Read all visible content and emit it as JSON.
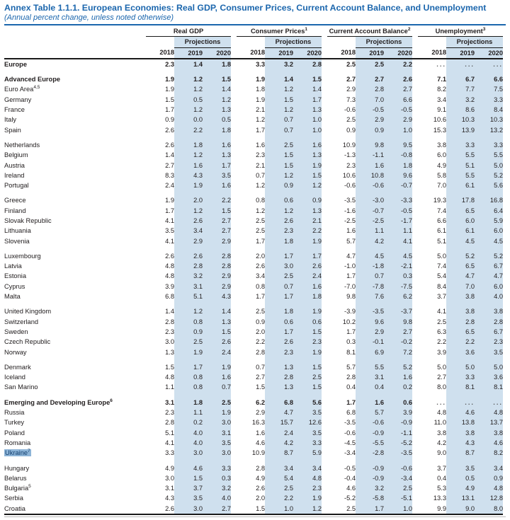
{
  "title": "Annex Table 1.1.1. European Economies: Real GDP, Consumer Prices, Current Account Balance, and Unemployment",
  "subtitle": "(Annual percent change, unless noted otherwise)",
  "colors": {
    "accent_blue": "#1b66ad",
    "projection_shade": "#cfe0ee",
    "highlight_bg": "#8db4d7",
    "highlight_text": "#14406f",
    "rule_black": "#1a1a1a"
  },
  "header": {
    "groups": [
      {
        "label": "Real GDP",
        "sup": ""
      },
      {
        "label": "Consumer Prices",
        "sup": "1"
      },
      {
        "label": "Current Account Balance",
        "sup": "2"
      },
      {
        "label": "Unemployment",
        "sup": "3"
      }
    ],
    "projections_label": "Projections",
    "years": [
      "2018",
      "2019",
      "2020"
    ]
  },
  "rows": [
    {
      "label": "Europe",
      "sup": "",
      "indent": 0,
      "bold": true,
      "highlight": false,
      "gap_before": false,
      "values": [
        "2.3",
        "1.4",
        "1.8",
        "3.3",
        "3.2",
        "2.8",
        "2.5",
        "2.5",
        "2.2",
        "...",
        "...",
        "..."
      ]
    },
    {
      "label": "Advanced Europe",
      "sup": "",
      "indent": 1,
      "bold": true,
      "highlight": false,
      "gap_before": true,
      "values": [
        "1.9",
        "1.2",
        "1.5",
        "1.9",
        "1.4",
        "1.5",
        "2.7",
        "2.7",
        "2.6",
        "7.1",
        "6.7",
        "6.6"
      ]
    },
    {
      "label": "Euro Area",
      "sup": "4,5",
      "indent": 1,
      "bold": false,
      "highlight": false,
      "gap_before": false,
      "values": [
        "1.9",
        "1.2",
        "1.4",
        "1.8",
        "1.2",
        "1.4",
        "2.9",
        "2.8",
        "2.7",
        "8.2",
        "7.7",
        "7.5"
      ]
    },
    {
      "label": "Germany",
      "sup": "",
      "indent": 2,
      "bold": false,
      "highlight": false,
      "gap_before": false,
      "values": [
        "1.5",
        "0.5",
        "1.2",
        "1.9",
        "1.5",
        "1.7",
        "7.3",
        "7.0",
        "6.6",
        "3.4",
        "3.2",
        "3.3"
      ]
    },
    {
      "label": "France",
      "sup": "",
      "indent": 2,
      "bold": false,
      "highlight": false,
      "gap_before": false,
      "values": [
        "1.7",
        "1.2",
        "1.3",
        "2.1",
        "1.2",
        "1.3",
        "-0.6",
        "-0.5",
        "-0.5",
        "9.1",
        "8.6",
        "8.4"
      ]
    },
    {
      "label": "Italy",
      "sup": "",
      "indent": 2,
      "bold": false,
      "highlight": false,
      "gap_before": false,
      "values": [
        "0.9",
        "0.0",
        "0.5",
        "1.2",
        "0.7",
        "1.0",
        "2.5",
        "2.9",
        "2.9",
        "10.6",
        "10.3",
        "10.3"
      ]
    },
    {
      "label": "Spain",
      "sup": "",
      "indent": 2,
      "bold": false,
      "highlight": false,
      "gap_before": false,
      "values": [
        "2.6",
        "2.2",
        "1.8",
        "1.7",
        "0.7",
        "1.0",
        "0.9",
        "0.9",
        "1.0",
        "15.3",
        "13.9",
        "13.2"
      ]
    },
    {
      "label": "Netherlands",
      "sup": "",
      "indent": 2,
      "bold": false,
      "highlight": false,
      "gap_before": true,
      "values": [
        "2.6",
        "1.8",
        "1.6",
        "1.6",
        "2.5",
        "1.6",
        "10.9",
        "9.8",
        "9.5",
        "3.8",
        "3.3",
        "3.3"
      ]
    },
    {
      "label": "Belgium",
      "sup": "",
      "indent": 2,
      "bold": false,
      "highlight": false,
      "gap_before": false,
      "values": [
        "1.4",
        "1.2",
        "1.3",
        "2.3",
        "1.5",
        "1.3",
        "-1.3",
        "-1.1",
        "-0.8",
        "6.0",
        "5.5",
        "5.5"
      ]
    },
    {
      "label": "Austria",
      "sup": "",
      "indent": 2,
      "bold": false,
      "highlight": false,
      "gap_before": false,
      "values": [
        "2.7",
        "1.6",
        "1.7",
        "2.1",
        "1.5",
        "1.9",
        "2.3",
        "1.6",
        "1.8",
        "4.9",
        "5.1",
        "5.0"
      ]
    },
    {
      "label": "Ireland",
      "sup": "",
      "indent": 2,
      "bold": false,
      "highlight": false,
      "gap_before": false,
      "values": [
        "8.3",
        "4.3",
        "3.5",
        "0.7",
        "1.2",
        "1.5",
        "10.6",
        "10.8",
        "9.6",
        "5.8",
        "5.5",
        "5.2"
      ]
    },
    {
      "label": "Portugal",
      "sup": "",
      "indent": 2,
      "bold": false,
      "highlight": false,
      "gap_before": false,
      "values": [
        "2.4",
        "1.9",
        "1.6",
        "1.2",
        "0.9",
        "1.2",
        "-0.6",
        "-0.6",
        "-0.7",
        "7.0",
        "6.1",
        "5.6"
      ]
    },
    {
      "label": "Greece",
      "sup": "",
      "indent": 2,
      "bold": false,
      "highlight": false,
      "gap_before": true,
      "values": [
        "1.9",
        "2.0",
        "2.2",
        "0.8",
        "0.6",
        "0.9",
        "-3.5",
        "-3.0",
        "-3.3",
        "19.3",
        "17.8",
        "16.8"
      ]
    },
    {
      "label": "Finland",
      "sup": "",
      "indent": 2,
      "bold": false,
      "highlight": false,
      "gap_before": false,
      "values": [
        "1.7",
        "1.2",
        "1.5",
        "1.2",
        "1.2",
        "1.3",
        "-1.6",
        "-0.7",
        "-0.5",
        "7.4",
        "6.5",
        "6.4"
      ]
    },
    {
      "label": "Slovak Republic",
      "sup": "",
      "indent": 2,
      "bold": false,
      "highlight": false,
      "gap_before": false,
      "values": [
        "4.1",
        "2.6",
        "2.7",
        "2.5",
        "2.6",
        "2.1",
        "-2.5",
        "-2.5",
        "-1.7",
        "6.6",
        "6.0",
        "5.9"
      ]
    },
    {
      "label": "Lithuania",
      "sup": "",
      "indent": 2,
      "bold": false,
      "highlight": false,
      "gap_before": false,
      "values": [
        "3.5",
        "3.4",
        "2.7",
        "2.5",
        "2.3",
        "2.2",
        "1.6",
        "1.1",
        "1.1",
        "6.1",
        "6.1",
        "6.0"
      ]
    },
    {
      "label": "Slovenia",
      "sup": "",
      "indent": 2,
      "bold": false,
      "highlight": false,
      "gap_before": false,
      "values": [
        "4.1",
        "2.9",
        "2.9",
        "1.7",
        "1.8",
        "1.9",
        "5.7",
        "4.2",
        "4.1",
        "5.1",
        "4.5",
        "4.5"
      ]
    },
    {
      "label": "Luxembourg",
      "sup": "",
      "indent": 2,
      "bold": false,
      "highlight": false,
      "gap_before": true,
      "values": [
        "2.6",
        "2.6",
        "2.8",
        "2.0",
        "1.7",
        "1.7",
        "4.7",
        "4.5",
        "4.5",
        "5.0",
        "5.2",
        "5.2"
      ]
    },
    {
      "label": "Latvia",
      "sup": "",
      "indent": 2,
      "bold": false,
      "highlight": false,
      "gap_before": false,
      "values": [
        "4.8",
        "2.8",
        "2.8",
        "2.6",
        "3.0",
        "2.6",
        "-1.0",
        "-1.8",
        "-2.1",
        "7.4",
        "6.5",
        "6.7"
      ]
    },
    {
      "label": "Estonia",
      "sup": "",
      "indent": 2,
      "bold": false,
      "highlight": false,
      "gap_before": false,
      "values": [
        "4.8",
        "3.2",
        "2.9",
        "3.4",
        "2.5",
        "2.4",
        "1.7",
        "0.7",
        "0.3",
        "5.4",
        "4.7",
        "4.7"
      ]
    },
    {
      "label": "Cyprus",
      "sup": "",
      "indent": 2,
      "bold": false,
      "highlight": false,
      "gap_before": false,
      "values": [
        "3.9",
        "3.1",
        "2.9",
        "0.8",
        "0.7",
        "1.6",
        "-7.0",
        "-7.8",
        "-7.5",
        "8.4",
        "7.0",
        "6.0"
      ]
    },
    {
      "label": "Malta",
      "sup": "",
      "indent": 2,
      "bold": false,
      "highlight": false,
      "gap_before": false,
      "values": [
        "6.8",
        "5.1",
        "4.3",
        "1.7",
        "1.7",
        "1.8",
        "9.8",
        "7.6",
        "6.2",
        "3.7",
        "3.8",
        "4.0"
      ]
    },
    {
      "label": "United Kingdom",
      "sup": "",
      "indent": 1,
      "bold": false,
      "highlight": false,
      "gap_before": true,
      "values": [
        "1.4",
        "1.2",
        "1.4",
        "2.5",
        "1.8",
        "1.9",
        "-3.9",
        "-3.5",
        "-3.7",
        "4.1",
        "3.8",
        "3.8"
      ]
    },
    {
      "label": "Switzerland",
      "sup": "",
      "indent": 1,
      "bold": false,
      "highlight": false,
      "gap_before": false,
      "values": [
        "2.8",
        "0.8",
        "1.3",
        "0.9",
        "0.6",
        "0.6",
        "10.2",
        "9.6",
        "9.8",
        "2.5",
        "2.8",
        "2.8"
      ]
    },
    {
      "label": "Sweden",
      "sup": "",
      "indent": 1,
      "bold": false,
      "highlight": false,
      "gap_before": false,
      "values": [
        "2.3",
        "0.9",
        "1.5",
        "2.0",
        "1.7",
        "1.5",
        "1.7",
        "2.9",
        "2.7",
        "6.3",
        "6.5",
        "6.7"
      ]
    },
    {
      "label": "Czech Republic",
      "sup": "",
      "indent": 1,
      "bold": false,
      "highlight": false,
      "gap_before": false,
      "values": [
        "3.0",
        "2.5",
        "2.6",
        "2.2",
        "2.6",
        "2.3",
        "0.3",
        "-0.1",
        "-0.2",
        "2.2",
        "2.2",
        "2.3"
      ]
    },
    {
      "label": "Norway",
      "sup": "",
      "indent": 1,
      "bold": false,
      "highlight": false,
      "gap_before": false,
      "values": [
        "1.3",
        "1.9",
        "2.4",
        "2.8",
        "2.3",
        "1.9",
        "8.1",
        "6.9",
        "7.2",
        "3.9",
        "3.6",
        "3.5"
      ]
    },
    {
      "label": "Denmark",
      "sup": "",
      "indent": 1,
      "bold": false,
      "highlight": false,
      "gap_before": true,
      "values": [
        "1.5",
        "1.7",
        "1.9",
        "0.7",
        "1.3",
        "1.5",
        "5.7",
        "5.5",
        "5.2",
        "5.0",
        "5.0",
        "5.0"
      ]
    },
    {
      "label": "Iceland",
      "sup": "",
      "indent": 1,
      "bold": false,
      "highlight": false,
      "gap_before": false,
      "values": [
        "4.8",
        "0.8",
        "1.6",
        "2.7",
        "2.8",
        "2.5",
        "2.8",
        "3.1",
        "1.6",
        "2.7",
        "3.3",
        "3.6"
      ]
    },
    {
      "label": "San Marino",
      "sup": "",
      "indent": 1,
      "bold": false,
      "highlight": false,
      "gap_before": false,
      "values": [
        "1.1",
        "0.8",
        "0.7",
        "1.5",
        "1.3",
        "1.5",
        "0.4",
        "0.4",
        "0.2",
        "8.0",
        "8.1",
        "8.1"
      ]
    },
    {
      "label": "Emerging and Developing Europe",
      "sup": "6",
      "indent": 1,
      "bold": true,
      "highlight": false,
      "gap_before": true,
      "values": [
        "3.1",
        "1.8",
        "2.5",
        "6.2",
        "6.8",
        "5.6",
        "1.7",
        "1.6",
        "0.6",
        "...",
        "...",
        "..."
      ]
    },
    {
      "label": "Russia",
      "sup": "",
      "indent": 1,
      "bold": false,
      "highlight": false,
      "gap_before": false,
      "values": [
        "2.3",
        "1.1",
        "1.9",
        "2.9",
        "4.7",
        "3.5",
        "6.8",
        "5.7",
        "3.9",
        "4.8",
        "4.6",
        "4.8"
      ]
    },
    {
      "label": "Turkey",
      "sup": "",
      "indent": 1,
      "bold": false,
      "highlight": false,
      "gap_before": false,
      "values": [
        "2.8",
        "0.2",
        "3.0",
        "16.3",
        "15.7",
        "12.6",
        "-3.5",
        "-0.6",
        "-0.9",
        "11.0",
        "13.8",
        "13.7"
      ]
    },
    {
      "label": "Poland",
      "sup": "",
      "indent": 1,
      "bold": false,
      "highlight": false,
      "gap_before": false,
      "values": [
        "5.1",
        "4.0",
        "3.1",
        "1.6",
        "2.4",
        "3.5",
        "-0.6",
        "-0.9",
        "-1.1",
        "3.8",
        "3.8",
        "3.8"
      ]
    },
    {
      "label": "Romania",
      "sup": "",
      "indent": 1,
      "bold": false,
      "highlight": false,
      "gap_before": false,
      "values": [
        "4.1",
        "4.0",
        "3.5",
        "4.6",
        "4.2",
        "3.3",
        "-4.5",
        "-5.5",
        "-5.2",
        "4.2",
        "4.3",
        "4.6"
      ]
    },
    {
      "label": "Ukraine",
      "sup": "7",
      "indent": 1,
      "bold": false,
      "highlight": true,
      "gap_before": false,
      "values": [
        "3.3",
        "3.0",
        "3.0",
        "10.9",
        "8.7",
        "5.9",
        "-3.4",
        "-2.8",
        "-3.5",
        "9.0",
        "8.7",
        "8.2"
      ]
    },
    {
      "label": "Hungary",
      "sup": "",
      "indent": 1,
      "bold": false,
      "highlight": false,
      "gap_before": true,
      "values": [
        "4.9",
        "4.6",
        "3.3",
        "2.8",
        "3.4",
        "3.4",
        "-0.5",
        "-0.9",
        "-0.6",
        "3.7",
        "3.5",
        "3.4"
      ]
    },
    {
      "label": "Belarus",
      "sup": "",
      "indent": 1,
      "bold": false,
      "highlight": false,
      "gap_before": false,
      "values": [
        "3.0",
        "1.5",
        "0.3",
        "4.9",
        "5.4",
        "4.8",
        "-0.4",
        "-0.9",
        "-3.4",
        "0.4",
        "0.5",
        "0.9"
      ]
    },
    {
      "label": "Bulgaria",
      "sup": "5",
      "indent": 1,
      "bold": false,
      "highlight": false,
      "gap_before": false,
      "values": [
        "3.1",
        "3.7",
        "3.2",
        "2.6",
        "2.5",
        "2.3",
        "4.6",
        "3.2",
        "2.5",
        "5.3",
        "4.9",
        "4.8"
      ]
    },
    {
      "label": "Serbia",
      "sup": "",
      "indent": 1,
      "bold": false,
      "highlight": false,
      "gap_before": false,
      "values": [
        "4.3",
        "3.5",
        "4.0",
        "2.0",
        "2.2",
        "1.9",
        "-5.2",
        "-5.8",
        "-5.1",
        "13.3",
        "13.1",
        "12.8"
      ]
    },
    {
      "label": "Croatia",
      "sup": "",
      "indent": 1,
      "bold": false,
      "highlight": false,
      "gap_before": false,
      "values": [
        "2.6",
        "3.0",
        "2.7",
        "1.5",
        "1.0",
        "1.2",
        "2.5",
        "1.7",
        "1.0",
        "9.9",
        "9.0",
        "8.0"
      ]
    }
  ]
}
